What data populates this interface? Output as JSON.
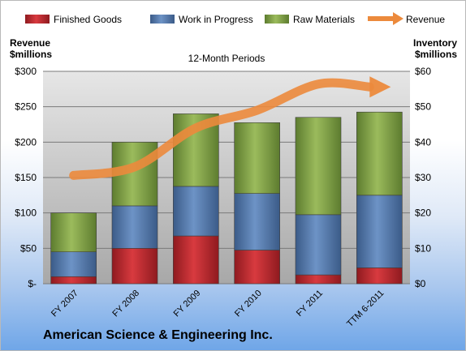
{
  "chart_data": {
    "type": "bar",
    "subtitle": "12-Month Periods",
    "company": "American Science & Engineering Inc.",
    "left_axis": {
      "title_line1": "Revenue",
      "title_line2": "$millions",
      "range": [
        0,
        300
      ],
      "ticks": [
        "$-",
        "$50",
        "$100",
        "$150",
        "$200",
        "$250",
        "$300"
      ]
    },
    "right_axis": {
      "title_line1": "Inventory",
      "title_line2": "$millions",
      "range": [
        0,
        60
      ],
      "ticks": [
        "$0",
        "$10",
        "$20",
        "$30",
        "$40",
        "$50",
        "$60"
      ]
    },
    "categories": [
      "FY 2007",
      "FY 2008",
      "FY 2009",
      "FY 2010",
      "FY 2011",
      "TTM 6-2011"
    ],
    "series": [
      {
        "name": "Finished Goods",
        "kind": "stacked-bar",
        "axis": "right",
        "color": "#c0262c",
        "values": [
          2,
          10,
          13.5,
          9.5,
          2.5,
          4.5
        ]
      },
      {
        "name": "Work in Progress",
        "kind": "stacked-bar",
        "axis": "right",
        "color": "#4f77ad",
        "values": [
          7,
          12,
          14,
          16,
          17,
          20.5
        ]
      },
      {
        "name": "Raw Materials",
        "kind": "stacked-bar",
        "axis": "right",
        "color": "#7fa145",
        "values": [
          11,
          18,
          20.5,
          20,
          27.5,
          23.5
        ]
      },
      {
        "name": "Revenue",
        "kind": "line",
        "axis": "left",
        "color": "#ec8a3c",
        "values": [
          153,
          165,
          220,
          245,
          282,
          278
        ]
      }
    ],
    "grid": true,
    "legend_position": "top"
  }
}
